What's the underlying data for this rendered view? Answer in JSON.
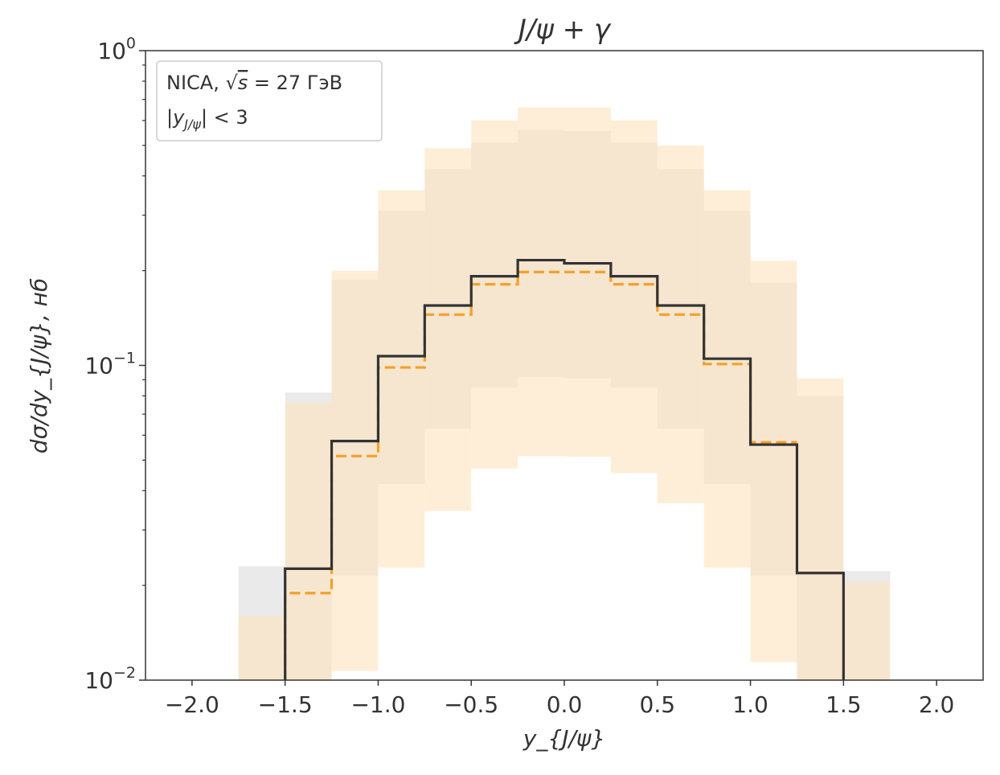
{
  "chart_data": {
    "type": "step-histogram",
    "title": "J/ψ + γ",
    "xlabel": "y_{J/ψ}",
    "ylabel": "dσ/dy_{J/ψ},  нб",
    "xlim": [
      -2.25,
      2.25
    ],
    "ylim": [
      0.01,
      1.0
    ],
    "yscale": "log",
    "grid": false,
    "x_ticks": [
      -2.0,
      -1.5,
      -1.0,
      -0.5,
      0.0,
      0.5,
      1.0,
      1.5,
      2.0
    ],
    "x_tick_labels": [
      "−2.0",
      "−1.5",
      "−1.0",
      "−0.5",
      "0.0",
      "0.5",
      "1.0",
      "1.5",
      "2.0"
    ],
    "y_ticks": [
      {
        "value": 1.0,
        "base": "10",
        "exp": "0"
      },
      {
        "value": 0.1,
        "base": "10",
        "exp": "−1"
      },
      {
        "value": 0.01,
        "base": "10",
        "exp": "−2"
      }
    ],
    "annotation": {
      "position": "top-left",
      "line1_prefix": "NICA, ",
      "line1_sqrt": "√",
      "line1_s": "s",
      "line1_value": " = 27 ГэВ",
      "line2_abs": "|y",
      "line2_sub": "J/ψ",
      "line2_rest": "| < 3"
    },
    "bin_edges": [
      -1.75,
      -1.5,
      -1.25,
      -1.0,
      -0.75,
      -0.5,
      -0.25,
      0.0,
      0.25,
      0.5,
      0.75,
      1.0,
      1.25,
      1.5,
      1.75
    ],
    "series": [
      {
        "style": "solid",
        "color": "#333333",
        "values": [
          null,
          0.0226,
          0.0575,
          0.107,
          0.155,
          0.192,
          0.216,
          0.211,
          0.192,
          0.155,
          0.105,
          0.056,
          0.0219,
          null
        ],
        "band_low": [
          0.01,
          0.01,
          0.0215,
          0.042,
          0.063,
          0.085,
          0.092,
          0.091,
          0.085,
          0.063,
          0.042,
          0.0215,
          0.01,
          0.01
        ],
        "band_high": [
          0.023,
          0.082,
          0.187,
          0.31,
          0.42,
          0.51,
          0.56,
          0.555,
          0.51,
          0.42,
          0.31,
          0.183,
          0.08,
          0.0222
        ],
        "band_color": "#e6e6e6"
      },
      {
        "style": "dashed",
        "color": "#f5a02a",
        "values": [
          null,
          0.0189,
          0.0515,
          0.0985,
          0.145,
          0.181,
          0.198,
          0.198,
          0.181,
          0.145,
          0.101,
          0.057,
          null,
          null
        ],
        "band_low": [
          0.01,
          0.01,
          0.0107,
          0.0228,
          0.0345,
          0.047,
          0.0515,
          0.0513,
          0.0455,
          0.0365,
          0.0228,
          0.0114,
          0.01,
          0.01
        ],
        "band_high": [
          0.016,
          0.076,
          0.2,
          0.36,
          0.49,
          0.6,
          0.66,
          0.66,
          0.6,
          0.5,
          0.36,
          0.215,
          0.091,
          0.0205
        ],
        "band_color": "#fde3bd"
      }
    ],
    "colors": {
      "frame": "#333333",
      "text": "#333333",
      "legend_border": "#cccccc"
    }
  }
}
